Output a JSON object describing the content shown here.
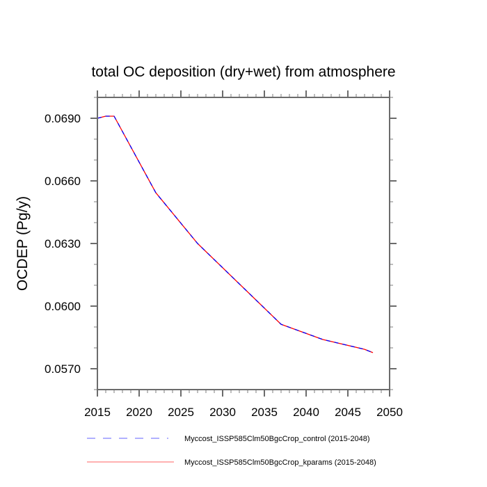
{
  "chart_data": {
    "type": "line",
    "title": "total OC deposition (dry+wet) from atmosphere",
    "xlabel": "",
    "ylabel": "OCDEP  (Pg/y)",
    "xlim": [
      2015,
      2050
    ],
    "ylim": [
      0.056,
      0.07
    ],
    "xticks": [
      2015,
      2020,
      2025,
      2030,
      2035,
      2040,
      2045,
      2050
    ],
    "xtick_labels": [
      "2015",
      "2020",
      "2025",
      "2030",
      "2035",
      "2040",
      "2045",
      "2050"
    ],
    "xminor_step": 1,
    "yticks": [
      0.057,
      0.06,
      0.063,
      0.066,
      0.069
    ],
    "ytick_labels": [
      "0.0570",
      "0.0600",
      "0.0630",
      "0.0660",
      "0.0690"
    ],
    "yminor_step": 0.001,
    "grid": false,
    "legend_position": "bottom",
    "series": [
      {
        "name": "Myccost_ISSP585Clm50BgcCrop_control (2015-2048)",
        "color": "#0000ff",
        "legend_color": "#8080ff",
        "style": "dashed",
        "x": [
          2015,
          2016,
          2017,
          2022,
          2027,
          2037,
          2042,
          2047,
          2048
        ],
        "values": [
          0.069,
          0.0691,
          0.0691,
          0.06543,
          0.063,
          0.05913,
          0.0584,
          0.05793,
          0.05777
        ]
      },
      {
        "name": "Myccost_ISSP585Clm50BgcCrop_kparams (2015-2048)",
        "color": "#ff0000",
        "legend_color": "#ff8080",
        "style": "solid",
        "x": [
          2015,
          2016,
          2017,
          2022,
          2027,
          2037,
          2042,
          2047,
          2048
        ],
        "values": [
          0.069,
          0.0691,
          0.0691,
          0.06543,
          0.063,
          0.05913,
          0.0584,
          0.05793,
          0.05777
        ]
      }
    ]
  }
}
